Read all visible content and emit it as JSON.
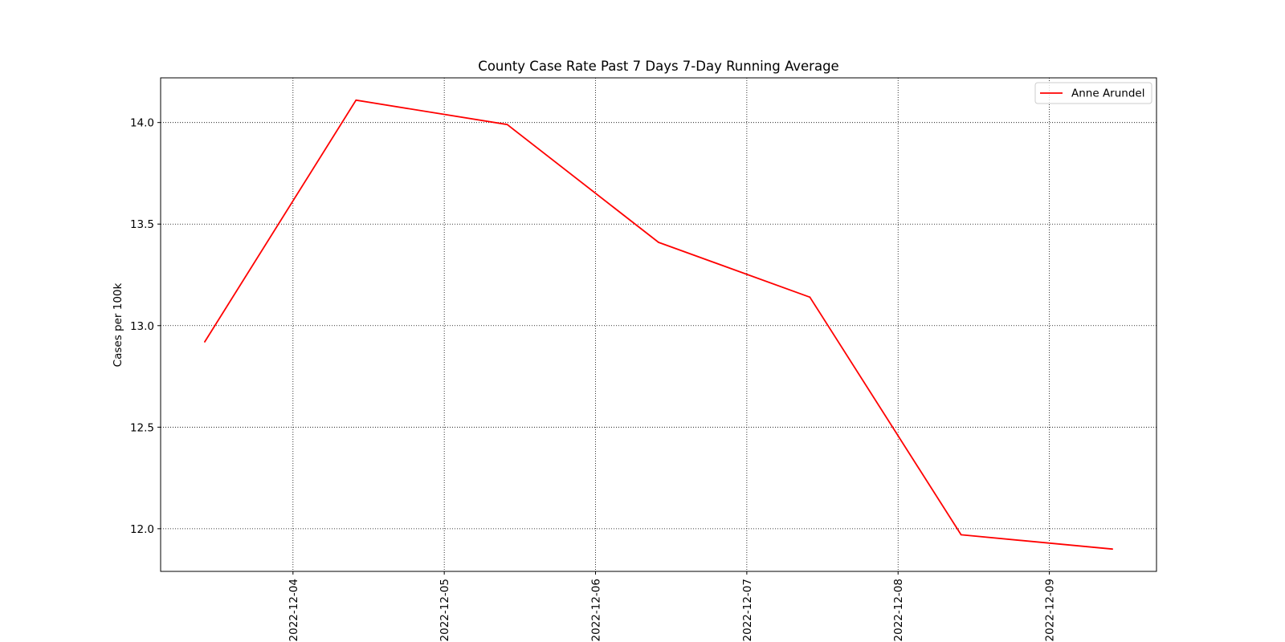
{
  "chart_data": {
    "type": "line",
    "title": "County Case Rate  Past 7 Days 7-Day Running Average",
    "xlabel": "",
    "ylabel": "Cases per 100k",
    "x": [
      "2022-12-03 10:00",
      "2022-12-04 10:00",
      "2022-12-05 10:00",
      "2022-12-06 10:00",
      "2022-12-07 10:00",
      "2022-12-08 10:00",
      "2022-12-09 10:00"
    ],
    "xticks": [
      "2022-12-04",
      "2022-12-05",
      "2022-12-06",
      "2022-12-07",
      "2022-12-08",
      "2022-12-09"
    ],
    "xlim": [
      "2022-12-03 03:00",
      "2022-12-09 17:00"
    ],
    "yticks": [
      12.0,
      12.5,
      13.0,
      13.5,
      14.0
    ],
    "ylim": [
      11.79,
      14.22
    ],
    "grid": true,
    "legend_position": "top-right",
    "series": [
      {
        "name": "Anne Arundel",
        "color": "#ff0000",
        "values": [
          12.92,
          14.11,
          13.99,
          13.41,
          13.14,
          11.97,
          11.9
        ]
      }
    ]
  }
}
